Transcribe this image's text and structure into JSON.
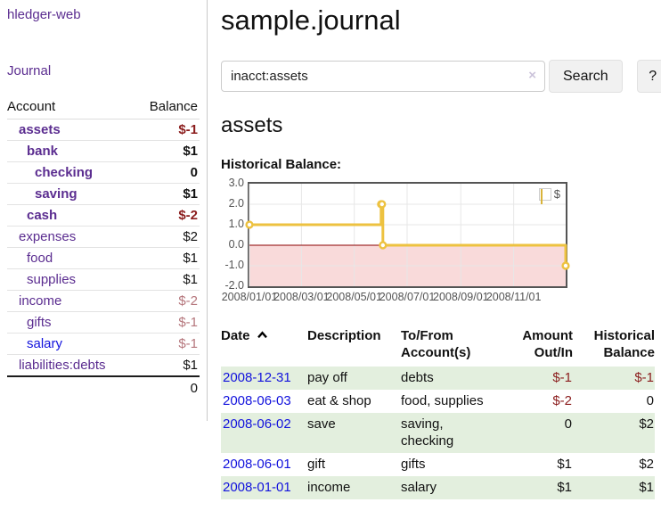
{
  "app_title": "hledger-web",
  "sidebar": {
    "journal_link": "Journal",
    "accounts": {
      "col_account": "Account",
      "col_balance": "Balance",
      "rows": [
        {
          "label": "assets",
          "level": 1,
          "in_account": true,
          "balance": "$-1",
          "tone": "neg-strong"
        },
        {
          "label": "bank",
          "level": 2,
          "in_account": true,
          "balance": "$1",
          "tone": "pos"
        },
        {
          "label": "checking",
          "level": 3,
          "in_account": true,
          "balance": "0",
          "tone": "pos"
        },
        {
          "label": "saving",
          "level": 3,
          "in_account": true,
          "balance": "$1",
          "tone": "pos"
        },
        {
          "label": "cash",
          "level": 2,
          "in_account": true,
          "balance": "$-2",
          "tone": "neg-strong"
        },
        {
          "label": "expenses",
          "level": 1,
          "in_account": false,
          "balance": "$2",
          "tone": "pos"
        },
        {
          "label": "food",
          "level": 2,
          "in_account": false,
          "balance": "$1",
          "tone": "pos"
        },
        {
          "label": "supplies",
          "level": 2,
          "in_account": false,
          "balance": "$1",
          "tone": "pos"
        },
        {
          "label": "income",
          "level": 1,
          "in_account": false,
          "balance": "$-2",
          "tone": "neg-soft"
        },
        {
          "label": "gifts",
          "level": 2,
          "in_account": false,
          "balance": "$-1",
          "tone": "neg-soft"
        },
        {
          "label": "salary",
          "level": 2,
          "in_account": false,
          "link_color": "blue",
          "balance": "$-1",
          "tone": "neg-soft"
        },
        {
          "label": "liabilities:debts",
          "level": 1,
          "in_account": false,
          "balance": "$1",
          "tone": "pos"
        }
      ],
      "total": "0"
    }
  },
  "main": {
    "title": "sample.journal",
    "search": {
      "value": "inacct:assets",
      "clear": "×",
      "search_label": "Search",
      "help_label": "?"
    },
    "account_heading": "assets",
    "chart_title": "Historical Balance:"
  },
  "chart_data": {
    "type": "line",
    "subtype": "step",
    "title": "Historical Balance",
    "x_range": [
      "2008-01-01",
      "2008-12-31"
    ],
    "y_range": [
      -2,
      3
    ],
    "x_ticks": [
      "2008/01/01",
      "2008/03/01",
      "2008/05/01",
      "2008/07/01",
      "2008/09/01",
      "2008/11/01"
    ],
    "y_ticks": [
      "3.0",
      "2.0",
      "1.0",
      "0.0",
      "-1.0",
      "-2.0"
    ],
    "series": [
      {
        "name": "$",
        "color": "#edc240",
        "points": [
          [
            "2008-01-01",
            1
          ],
          [
            "2008-06-01",
            2
          ],
          [
            "2008-06-02",
            2
          ],
          [
            "2008-06-03",
            0
          ],
          [
            "2008-12-31",
            -1
          ]
        ]
      }
    ],
    "legend_position": "top-right",
    "grid": true,
    "zero_line_color": "#8b0000",
    "negative_region_color": "#f9dada"
  },
  "register": {
    "columns": {
      "date": "Date",
      "description": "Description",
      "accounts": "To/From Account(s)",
      "amount": "Amount Out/In",
      "balance": "Historical Balance"
    },
    "sort_icon": "chevron-up",
    "rows": [
      {
        "date": "2008-12-31",
        "description": "pay off",
        "accounts": "debts",
        "amount": "$-1",
        "amount_tone": "neg",
        "balance": "$-1",
        "balance_tone": "neg"
      },
      {
        "date": "2008-06-03",
        "description": "eat & shop",
        "accounts": "food, supplies",
        "amount": "$-2",
        "amount_tone": "neg",
        "balance": "0",
        "balance_tone": "pos"
      },
      {
        "date": "2008-06-02",
        "description": "save",
        "accounts": "saving,\nchecking",
        "amount": "0",
        "amount_tone": "pos",
        "balance": "$2",
        "balance_tone": "pos"
      },
      {
        "date": "2008-06-01",
        "description": "gift",
        "accounts": "gifts",
        "amount": "$1",
        "amount_tone": "pos",
        "balance": "$2",
        "balance_tone": "pos"
      },
      {
        "date": "2008-01-01",
        "description": "income",
        "accounts": "salary",
        "amount": "$1",
        "amount_tone": "pos",
        "balance": "$1",
        "balance_tone": "pos"
      }
    ]
  }
}
